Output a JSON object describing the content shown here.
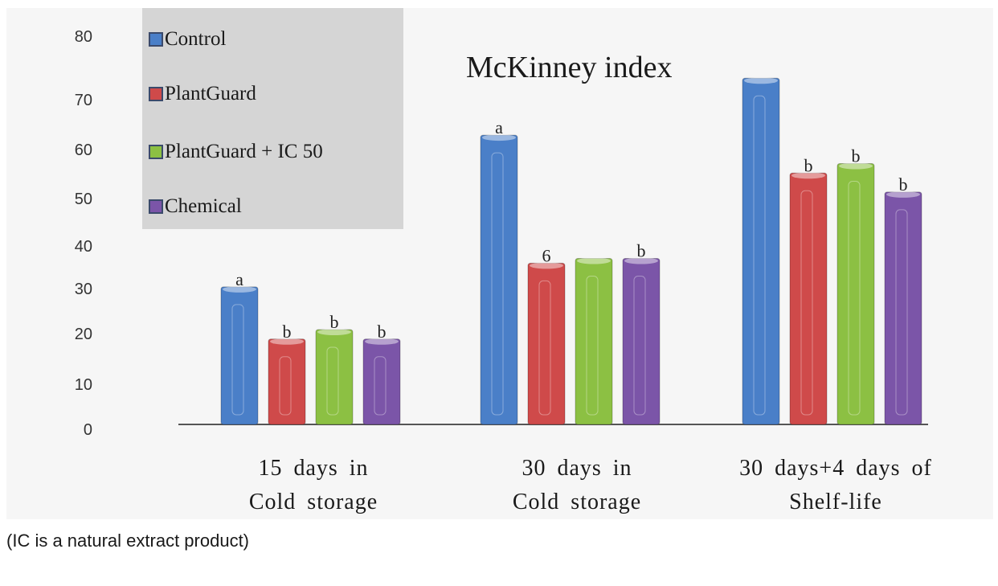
{
  "chart_data": {
    "type": "bar",
    "title": "McKinney index",
    "categories": [
      {
        "line1": "15 days in",
        "line2": "Cold storage"
      },
      {
        "line1": "30 days in",
        "line2": "Cold storage"
      },
      {
        "line1": "30 days+4 days of",
        "line2": "Shelf-life"
      }
    ],
    "series": [
      {
        "name": "Control",
        "color": "#4a7fc8",
        "values": [
          29,
          61,
          73
        ],
        "labels": [
          "a",
          "a",
          ""
        ]
      },
      {
        "name": "PlantGuard",
        "color": "#cf4a4a",
        "values": [
          18,
          34,
          53
        ],
        "labels": [
          "b",
          "6",
          "b"
        ]
      },
      {
        "name": "PlantGuard + IC 50",
        "color": "#8cc043",
        "values": [
          20,
          35,
          55
        ],
        "labels": [
          "b",
          "",
          "b"
        ]
      },
      {
        "name": "Chemical",
        "color": "#7b55a8",
        "values": [
          18,
          35,
          49
        ],
        "labels": [
          "b",
          "b",
          "b"
        ]
      }
    ],
    "yticks": [
      "0",
      "10",
      "20",
      "30",
      "40",
      "50",
      "60",
      "70",
      "80"
    ],
    "ylim": [
      0,
      80
    ],
    "xlabel": "",
    "ylabel": ""
  },
  "caption": "(IC is a natural extract product)"
}
